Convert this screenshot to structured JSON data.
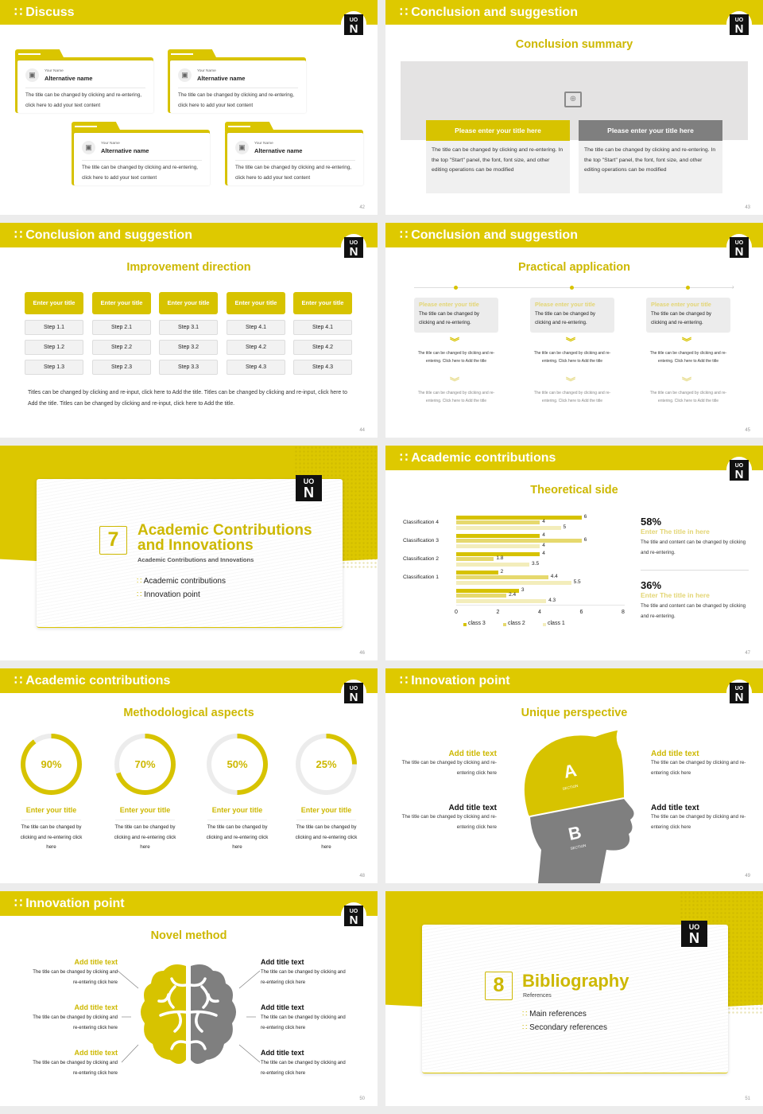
{
  "colors": {
    "brand_yellow": "#dec900",
    "title_yellow": "#cdb800",
    "gray_dark": "#7f7f7f",
    "gray_light": "#f0f0f0",
    "light_yellow_1": "#e9de85",
    "light_yellow_2": "#f4eebb"
  },
  "logo": {
    "top": "UO",
    "bottom": "N"
  },
  "slides": [
    {
      "page": "42",
      "header": "Discuss",
      "cards": [
        {
          "label": "Your Name",
          "name": "Alternative name",
          "text": "The title can be changed by clicking and re-entering, click here to add your text content"
        },
        {
          "label": "Your Name",
          "name": "Alternative name",
          "text": "The title can be changed by clicking and re-entering, click here to add your text content"
        },
        {
          "label": "Your Name",
          "name": "Alternative name",
          "text": "The title can be changed by clicking and re-entering, click here to add your text content"
        },
        {
          "label": "Your Name",
          "name": "Alternative name",
          "text": "The title can be changed by clicking and re-entering, click here to add your text content"
        }
      ]
    },
    {
      "page": "43",
      "header": "Conclusion and suggestion",
      "subtitle": "Conclusion summary",
      "boxes": [
        {
          "title": "Please enter your title here",
          "text": "The title can be changed by clicking and re-entering. In the top \"Start\" panel, the font, font size, and other editing operations can be modified"
        },
        {
          "title": "Please enter your title here",
          "text": "The title can be changed by clicking and re-entering. In the top \"Start\" panel, the font, font size, and other editing operations can be modified"
        }
      ]
    },
    {
      "page": "44",
      "header": "Conclusion and suggestion",
      "subtitle": "Improvement direction",
      "columns": [
        {
          "title": "Enter your title",
          "steps": [
            "Step 1.1",
            "Step 1.2",
            "Step 1.3"
          ]
        },
        {
          "title": "Enter your title",
          "steps": [
            "Step 2.1",
            "Step 2.2",
            "Step 2.3"
          ]
        },
        {
          "title": "Enter your title",
          "steps": [
            "Step 3.1",
            "Step 3.2",
            "Step 3.3"
          ]
        },
        {
          "title": "Enter your title",
          "steps": [
            "Step 4.1",
            "Step 4.2",
            "Step 4.3"
          ]
        },
        {
          "title": "Enter your title",
          "steps": [
            "Step 4.1",
            "Step 4.2",
            "Step 4.3"
          ]
        }
      ],
      "paragraph": "Titles can be changed by clicking and re-input, click here to Add the title. Titles can be changed by clicking and re-input, click here to Add the title. Titles can be changed by clicking and re-input, click here to Add the title."
    },
    {
      "page": "45",
      "header": "Conclusion and suggestion",
      "subtitle": "Practical application",
      "items": [
        {
          "title": "Please enter your title",
          "text": "The title can be changed by clicking and re-entering.",
          "step1": "The title can be changed by clicking and re-entering. Click here to Add the title",
          "step2": "The title can be changed by clicking and re-entering. Click here to Add the title"
        },
        {
          "title": "Please enter your title",
          "text": "The title can be changed by clicking and re-entering.",
          "step1": "The title can be changed by clicking and re-entering. Click here to Add the title",
          "step2": "The title can be changed by clicking and re-entering. Click here to Add the title"
        },
        {
          "title": "Please enter your title",
          "text": "The title can be changed by clicking and re-entering.",
          "step1": "The title can be changed by clicking and re-entering. Click here to Add the title",
          "step2": "The title can be changed by clicking and re-entering. Click here to Add the title"
        }
      ]
    },
    {
      "page": "46",
      "number": "7",
      "title_line1": "Academic Contributions",
      "title_line2": "and Innovations",
      "subtitle": "Academic Contributions and Innovations",
      "bullets": [
        "Academic contributions",
        "Innovation point"
      ]
    },
    {
      "page": "47",
      "header": "Academic contributions",
      "subtitle": "Theoretical side",
      "stats": [
        {
          "value": "58%",
          "title": "Enter The title in here",
          "text": "The title and content can be changed by clicking and re-entering."
        },
        {
          "value": "36%",
          "title": "Enter The title in here",
          "text": "The title and content can be changed by clicking and re-entering."
        }
      ]
    },
    {
      "page": "48",
      "header": "Academic contributions",
      "subtitle": "Methodological aspects",
      "rings": [
        {
          "value": "90%",
          "pct": 90,
          "title": "Enter your title",
          "text": "The title can be changed by clicking and re-entering click here"
        },
        {
          "value": "70%",
          "pct": 70,
          "title": "Enter your title",
          "text": "The title can be changed by clicking and re-entering click here"
        },
        {
          "value": "50%",
          "pct": 50,
          "title": "Enter your title",
          "text": "The title can be changed by clicking and re-entering click here"
        },
        {
          "value": "25%",
          "pct": 25,
          "title": "Enter your title",
          "text": "The title can be changed by clicking and re-entering click here"
        }
      ]
    },
    {
      "page": "49",
      "header": "Innovation point",
      "subtitle": "Unique perspective",
      "section_a": "A",
      "section_b": "B",
      "section_label": "SECTION",
      "blocks": [
        {
          "title": "Add title text",
          "text": "The title can be changed by clicking and re-entering click here"
        },
        {
          "title": "Add title text",
          "text": "The title can be changed by clicking and re-entering click here"
        },
        {
          "title": "Add title text",
          "text": "The title can be changed by clicking and re-entering click here"
        },
        {
          "title": "Add title text",
          "text": "The title can be changed by clicking and re-entering click here"
        }
      ]
    },
    {
      "page": "50",
      "header": "Innovation point",
      "subtitle": "Novel method",
      "blocks": [
        {
          "title": "Add title text",
          "text": "The title can be changed by clicking and re-entering click here"
        },
        {
          "title": "Add title text",
          "text": "The title can be changed by clicking and re-entering click here"
        },
        {
          "title": "Add title text",
          "text": "The title can be changed by clicking and re-entering click here"
        },
        {
          "title": "Add title text",
          "text": "The title can be changed by clicking and re-entering click here"
        },
        {
          "title": "Add title text",
          "text": "The title can be changed by clicking and re-entering click here"
        },
        {
          "title": "Add title text",
          "text": "The title can be changed by clicking and re-entering click here"
        }
      ]
    },
    {
      "page": "51",
      "number": "8",
      "title": "Bibliography",
      "subtitle": "References",
      "bullets": [
        "Main references",
        "Secondary references"
      ]
    }
  ],
  "chart_data": {
    "type": "bar",
    "orientation": "horizontal",
    "title": "Theoretical side",
    "categories": [
      "Classification 4",
      "Classification 3",
      "Classification 2",
      "Classification 1",
      ""
    ],
    "series": [
      {
        "name": "class 3",
        "color": "#d6c200",
        "values": [
          6,
          4,
          4,
          2,
          3
        ]
      },
      {
        "name": "class 2",
        "color": "#e6d96e",
        "values": [
          4,
          6,
          1.8,
          4.4,
          2.4
        ]
      },
      {
        "name": "class 1",
        "color": "#f3edbb",
        "values": [
          5,
          4,
          3.5,
          5.5,
          4.3
        ]
      }
    ],
    "xticks": [
      "0",
      "2",
      "4",
      "6",
      "8"
    ],
    "xlim": [
      0,
      8
    ],
    "legend_position": "bottom",
    "grid": false
  }
}
